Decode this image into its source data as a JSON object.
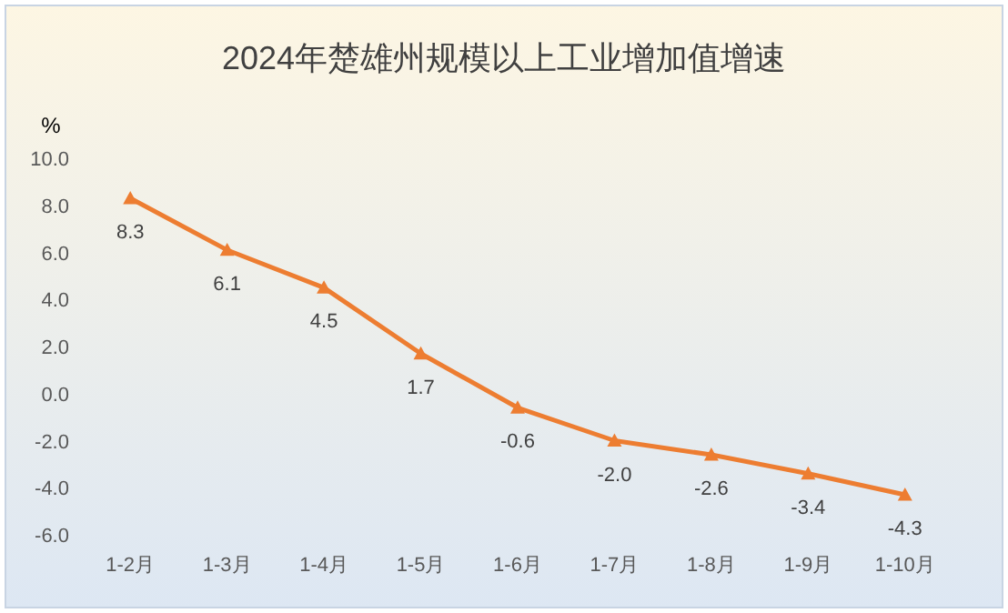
{
  "chart_data": {
    "type": "line",
    "title": "2024年楚雄州规模以上工业增加值增速",
    "ylabel": "%",
    "categories": [
      "1-2月",
      "1-3月",
      "1-4月",
      "1-5月",
      "1-6月",
      "1-7月",
      "1-8月",
      "1-9月",
      "1-10月"
    ],
    "values": [
      8.3,
      6.1,
      4.5,
      1.7,
      -0.6,
      -2.0,
      -2.6,
      -3.4,
      -4.3
    ],
    "value_labels": [
      "8.3",
      "6.1",
      "4.5",
      "1.7",
      "-0.6",
      "-2.0",
      "-2.6",
      "-3.4",
      "-4.3"
    ],
    "color": "#ed7d31",
    "marker": "triangle",
    "line_style": "solid",
    "ylim": [
      -6,
      10
    ],
    "yticks": [
      {
        "value": -6,
        "label": "-6.0"
      },
      {
        "value": -4,
        "label": "-4.0"
      },
      {
        "value": -2,
        "label": "-2.0"
      },
      {
        "value": 0,
        "label": "0.0"
      },
      {
        "value": 2,
        "label": "2.0"
      },
      {
        "value": 4,
        "label": "4.0"
      },
      {
        "value": 6,
        "label": "6.0"
      },
      {
        "value": 8,
        "label": "8.0"
      },
      {
        "value": 10,
        "label": "10.0"
      }
    ]
  }
}
